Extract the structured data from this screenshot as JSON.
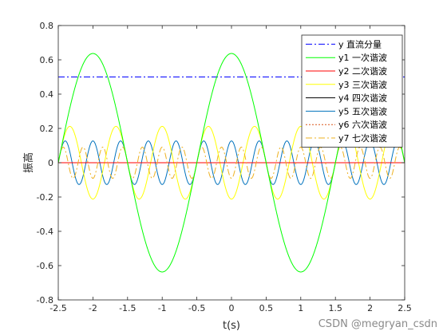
{
  "chart_data": {
    "type": "line",
    "xlabel": "t(s)",
    "ylabel": "振高",
    "xlim": [
      -2.5,
      2.5
    ],
    "ylim": [
      -0.8,
      0.8
    ],
    "xticks": [
      "-2.5",
      "-2",
      "-1.5",
      "-1",
      "-0.5",
      "0",
      "0.5",
      "1",
      "1.5",
      "2",
      "2.5"
    ],
    "yticks": [
      "-0.8",
      "-0.6",
      "-0.4",
      "-0.2",
      "0",
      "0.2",
      "0.4",
      "0.6",
      "0.8"
    ],
    "grid": false,
    "legend_position": "top-right",
    "period": 2,
    "series": [
      {
        "name": "y 直流分量",
        "harmonic": 0,
        "amplitude": 0.5,
        "waveform": "constant",
        "color": "#0000ff",
        "dash": "8,3,2,3"
      },
      {
        "name": "y1 一次谐波",
        "harmonic": 1,
        "amplitude": 0.637,
        "waveform": "cos",
        "color": "#00ff00",
        "dash": ""
      },
      {
        "name": "y2 二次谐波",
        "harmonic": 2,
        "amplitude": 0,
        "waveform": "cos",
        "color": "#ff0000",
        "dash": ""
      },
      {
        "name": "y3 三次谐波",
        "harmonic": 3,
        "amplitude": -0.212,
        "waveform": "cos",
        "color": "#ffff00",
        "dash": ""
      },
      {
        "name": "y4 四次谐波",
        "harmonic": 4,
        "amplitude": 0,
        "waveform": "cos",
        "color": "#000000",
        "dash": ""
      },
      {
        "name": "y5 五次谐波",
        "harmonic": 5,
        "amplitude": 0.127,
        "waveform": "cos",
        "color": "#0072bd",
        "dash": ""
      },
      {
        "name": "y6 六次谐波",
        "harmonic": 6,
        "amplitude": 0,
        "waveform": "cos",
        "color": "#d95319",
        "dash": "2,2"
      },
      {
        "name": "y7 七次谐波",
        "harmonic": 7,
        "amplitude": -0.091,
        "waveform": "cos",
        "color": "#edb120",
        "dash": "8,3,2,3"
      }
    ]
  },
  "watermark": "CSDN @megryan_csdn"
}
